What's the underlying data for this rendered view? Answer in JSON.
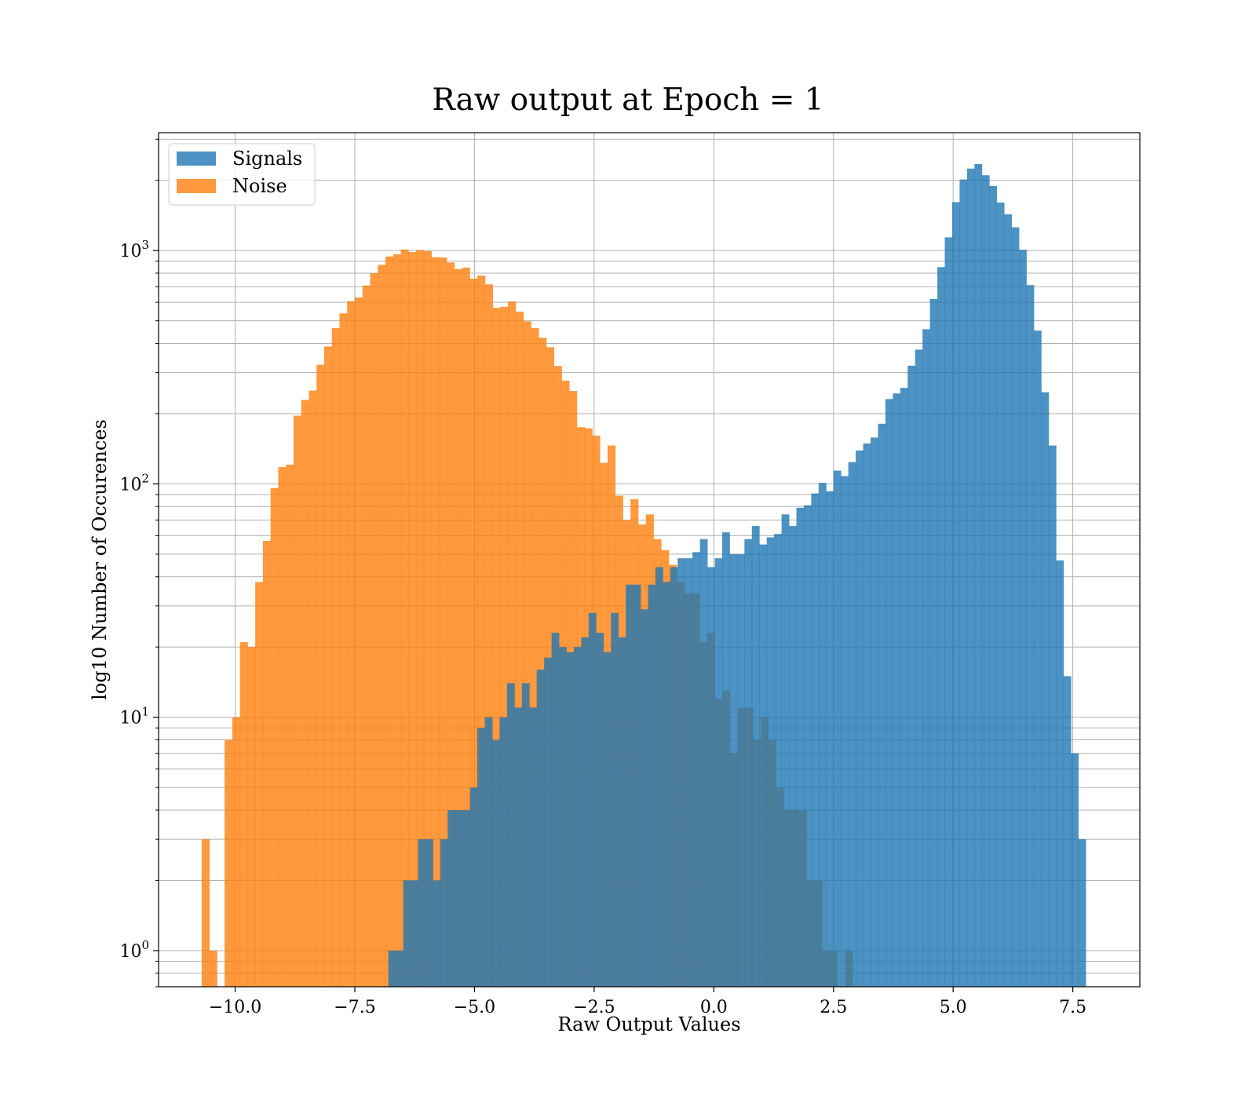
{
  "chart_data": {
    "type": "bar",
    "subtype": "histogram",
    "title": "Raw output at Epoch = 1",
    "xlabel": "Raw Output Values",
    "ylabel": "log10 Number of Occurences",
    "x_scale": "linear",
    "y_scale": "log",
    "xlim": [
      -11.6,
      8.9
    ],
    "ylim": [
      0.7,
      3200
    ],
    "x_ticks": [
      -10.0,
      -7.5,
      -5.0,
      -2.5,
      0.0,
      2.5,
      5.0,
      7.5
    ],
    "x_tick_labels": [
      "−10.0",
      "−7.5",
      "−5.0",
      "−2.5",
      "0.0",
      "2.5",
      "5.0",
      "7.5"
    ],
    "y_ticks": [
      1,
      10,
      100,
      1000
    ],
    "y_tick_labels": [
      "10^0",
      "10^1",
      "10^2",
      "10^3"
    ],
    "grid": true,
    "legend_position": "upper-left",
    "series": [
      {
        "name": "Noise",
        "color": "#ff7f0e",
        "alpha": 0.8,
        "bin_start": -10.7,
        "bin_width": 0.16,
        "counts": [
          3,
          1,
          0,
          8,
          10,
          21,
          20,
          38,
          57,
          96,
          118,
          121,
          196,
          229,
          251,
          324,
          388,
          465,
          538,
          607,
          629,
          708,
          799,
          868,
          942,
          964,
          1010,
          985,
          1006,
          995,
          937,
          933,
          889,
          832,
          845,
          758,
          781,
          716,
          568,
          574,
          605,
          547,
          497,
          465,
          423,
          385,
          320,
          277,
          250,
          175,
          173,
          161,
          123,
          146,
          89,
          70,
          86,
          67,
          74,
          58,
          52,
          45,
          38,
          34,
          34,
          21,
          23,
          12,
          13,
          7,
          11,
          11,
          8,
          10,
          8,
          5,
          4,
          4,
          4,
          2,
          2,
          1,
          1,
          0,
          1
        ]
      },
      {
        "name": "Signals",
        "color": "#1f77b4",
        "alpha": 0.8,
        "bin_start": -6.8,
        "bin_width": 0.155,
        "counts": [
          1,
          1,
          2,
          2,
          3,
          3,
          2,
          3,
          4,
          4,
          4,
          5,
          9,
          10,
          8,
          10,
          14,
          11,
          14,
          11,
          16,
          18,
          23,
          20,
          19,
          20,
          22,
          28,
          23,
          19,
          28,
          22,
          37,
          37,
          29,
          37,
          44,
          38,
          44,
          48,
          48,
          51,
          58,
          44,
          48,
          62,
          50,
          50,
          58,
          66,
          55,
          59,
          61,
          74,
          66,
          79,
          81,
          91,
          101,
          93,
          114,
          108,
          124,
          139,
          149,
          158,
          181,
          231,
          244,
          258,
          321,
          376,
          460,
          620,
          849,
          1139,
          1612,
          2016,
          2245,
          2347,
          2102,
          1891,
          1605,
          1429,
          1257,
          1008,
          711,
          454,
          247,
          146,
          47,
          15,
          7,
          3
        ]
      }
    ]
  }
}
